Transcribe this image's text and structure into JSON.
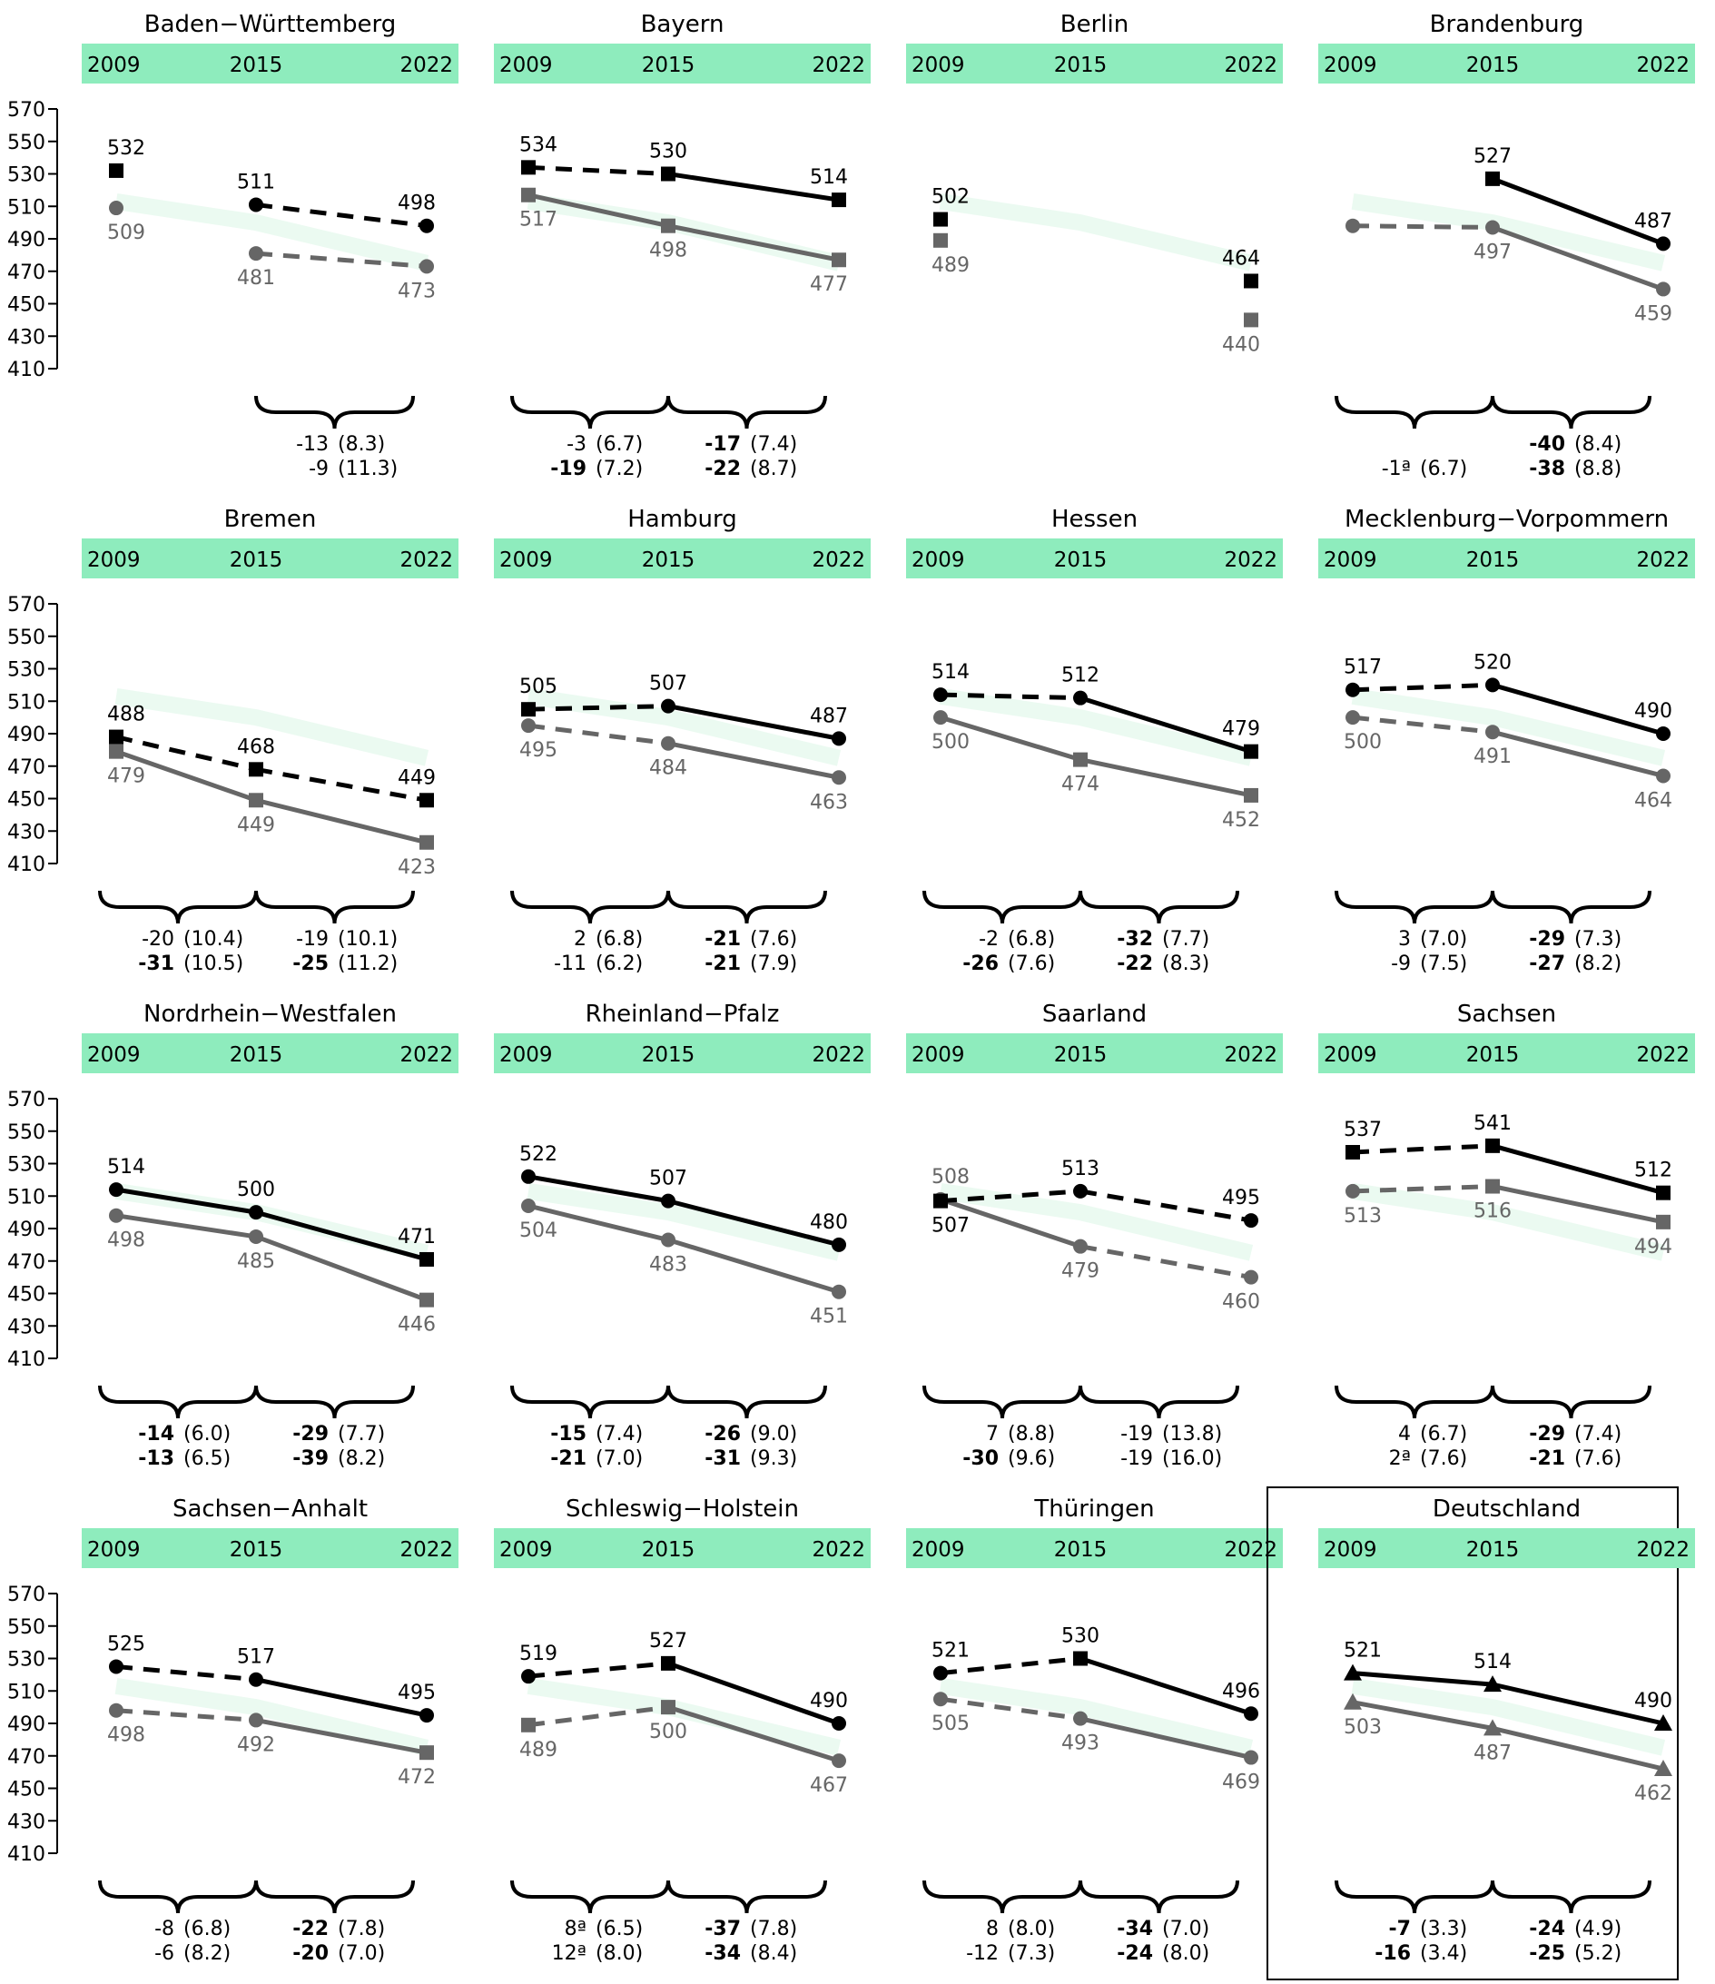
{
  "years": [
    "2009",
    "2015",
    "2022"
  ],
  "colors": {
    "header_band": "#8eecbd",
    "reference_band": "#ebfaf1",
    "series_dark": "#000000",
    "series_gray": "#666666",
    "text": "#000000",
    "gray_text": "#666666"
  },
  "chart_data": {
    "type": "line",
    "ylim": [
      410,
      570
    ],
    "y_ticks": [
      "570",
      "550",
      "530",
      "510",
      "490",
      "470",
      "450",
      "430",
      "410"
    ],
    "panels": [
      {
        "title": "Baden−Württemberg",
        "marker": "circle",
        "ref": true,
        "dark": {
          "values": [
            532,
            511,
            498
          ],
          "markers": [
            "square",
            "circle",
            "circle"
          ],
          "segments": [
            "none",
            "dashed"
          ]
        },
        "gray": {
          "values": [
            509,
            481,
            473
          ],
          "markers": [
            "circle",
            "circle",
            "circle"
          ],
          "segments": [
            "none",
            "dashed"
          ]
        },
        "diffs": [
          null,
          {
            "row1": {
              "v": "-13",
              "se": "(8.3)",
              "bold": false
            },
            "row2": {
              "v": "-9",
              "se": "(11.3)",
              "bold": false
            }
          }
        ]
      },
      {
        "title": "Bayern",
        "marker": "square",
        "ref": true,
        "dark": {
          "values": [
            534,
            530,
            514
          ],
          "markers": [
            "square",
            "square",
            "square"
          ],
          "segments": [
            "dashed",
            "solid"
          ]
        },
        "gray": {
          "values": [
            517,
            498,
            477
          ],
          "markers": [
            "square",
            "square",
            "square"
          ],
          "segments": [
            "solid",
            "solid"
          ]
        },
        "diffs": [
          {
            "row1": {
              "v": "-3",
              "se": "(6.7)",
              "bold": false
            },
            "row2": {
              "v": "-19",
              "se": "(7.2)",
              "bold": true
            }
          },
          {
            "row1": {
              "v": "-17",
              "se": "(7.4)",
              "bold": true
            },
            "row2": {
              "v": "-22",
              "se": "(8.7)",
              "bold": true
            }
          }
        ]
      },
      {
        "title": "Berlin",
        "marker": "square",
        "ref": true,
        "dark": {
          "values": [
            502,
            null,
            464
          ],
          "markers": [
            "square",
            null,
            "square"
          ],
          "segments": [
            "none",
            "none"
          ]
        },
        "gray": {
          "values": [
            489,
            null,
            440
          ],
          "markers": [
            "square",
            null,
            "square"
          ],
          "segments": [
            "none",
            "none"
          ]
        },
        "diffs": [
          null,
          null
        ]
      },
      {
        "title": "Brandenburg",
        "marker": "circle",
        "ref": true,
        "dark": {
          "values": [
            null,
            527,
            487
          ],
          "markers": [
            null,
            "square",
            "circle"
          ],
          "segments": [
            "none",
            "solid"
          ]
        },
        "gray": {
          "values": [
            498,
            497,
            459
          ],
          "markers": [
            "circle",
            "circle",
            "circle"
          ],
          "segments": [
            "dashed",
            "solid"
          ]
        },
        "gray_labels": [
          false,
          true,
          true
        ],
        "diffs": [
          {
            "row1": null,
            "row2": {
              "v": "-1ª",
              "se": "(6.7)",
              "bold": false
            }
          },
          {
            "row1": {
              "v": "-40",
              "se": "(8.4)",
              "bold": true
            },
            "row2": {
              "v": "-38",
              "se": "(8.8)",
              "bold": true
            }
          }
        ]
      },
      {
        "title": "Bremen",
        "marker": "square",
        "ref": true,
        "dark": {
          "values": [
            488,
            468,
            449
          ],
          "markers": [
            "square",
            "square",
            "square"
          ],
          "segments": [
            "dashed",
            "dashed"
          ]
        },
        "gray": {
          "values": [
            479,
            449,
            423
          ],
          "markers": [
            "square",
            "square",
            "square"
          ],
          "segments": [
            "solid",
            "solid"
          ]
        },
        "diffs": [
          {
            "row1": {
              "v": "-20",
              "se": "(10.4)",
              "bold": false
            },
            "row2": {
              "v": "-31",
              "se": "(10.5)",
              "bold": true
            }
          },
          {
            "row1": {
              "v": "-19",
              "se": "(10.1)",
              "bold": false
            },
            "row2": {
              "v": "-25",
              "se": "(11.2)",
              "bold": true
            }
          }
        ]
      },
      {
        "title": "Hamburg",
        "marker": "circle",
        "ref": true,
        "dark": {
          "values": [
            505,
            507,
            487
          ],
          "markers": [
            "square",
            "circle",
            "circle"
          ],
          "segments": [
            "dashed",
            "solid"
          ]
        },
        "gray": {
          "values": [
            495,
            484,
            463
          ],
          "markers": [
            "circle",
            "circle",
            "circle"
          ],
          "segments": [
            "dashed",
            "solid"
          ]
        },
        "diffs": [
          {
            "row1": {
              "v": "2",
              "se": "(6.8)",
              "bold": false
            },
            "row2": {
              "v": "-11",
              "se": "(6.2)",
              "bold": false
            }
          },
          {
            "row1": {
              "v": "-21",
              "se": "(7.6)",
              "bold": true
            },
            "row2": {
              "v": "-21",
              "se": "(7.9)",
              "bold": true
            }
          }
        ]
      },
      {
        "title": "Hessen",
        "marker": "circle",
        "ref": true,
        "dark": {
          "values": [
            514,
            512,
            479
          ],
          "markers": [
            "circle",
            "circle",
            "square"
          ],
          "segments": [
            "dashed",
            "solid"
          ]
        },
        "gray": {
          "values": [
            500,
            474,
            452
          ],
          "markers": [
            "circle",
            "square",
            "square"
          ],
          "segments": [
            "solid",
            "solid"
          ]
        },
        "diffs": [
          {
            "row1": {
              "v": "-2",
              "se": "(6.8)",
              "bold": false
            },
            "row2": {
              "v": "-26",
              "se": "(7.6)",
              "bold": true
            }
          },
          {
            "row1": {
              "v": "-32",
              "se": "(7.7)",
              "bold": true
            },
            "row2": {
              "v": "-22",
              "se": "(8.3)",
              "bold": true
            }
          }
        ]
      },
      {
        "title": "Mecklenburg−Vorpommern",
        "marker": "circle",
        "ref": true,
        "dark": {
          "values": [
            517,
            520,
            490
          ],
          "markers": [
            "circle",
            "circle",
            "circle"
          ],
          "segments": [
            "dashed",
            "solid"
          ]
        },
        "gray": {
          "values": [
            500,
            491,
            464
          ],
          "markers": [
            "circle",
            "circle",
            "circle"
          ],
          "segments": [
            "dashed",
            "solid"
          ]
        },
        "diffs": [
          {
            "row1": {
              "v": "3",
              "se": "(7.0)",
              "bold": false
            },
            "row2": {
              "v": "-9",
              "se": "(7.5)",
              "bold": false
            }
          },
          {
            "row1": {
              "v": "-29",
              "se": "(7.3)",
              "bold": true
            },
            "row2": {
              "v": "-27",
              "se": "(8.2)",
              "bold": true
            }
          }
        ]
      },
      {
        "title": "Nordrhein−Westfalen",
        "marker": "circle",
        "ref": true,
        "dark": {
          "values": [
            514,
            500,
            471
          ],
          "markers": [
            "circle",
            "circle",
            "square"
          ],
          "segments": [
            "solid",
            "solid"
          ]
        },
        "gray": {
          "values": [
            498,
            485,
            446
          ],
          "markers": [
            "circle",
            "circle",
            "square"
          ],
          "segments": [
            "solid",
            "solid"
          ]
        },
        "diffs": [
          {
            "row1": {
              "v": "-14",
              "se": "(6.0)",
              "bold": true
            },
            "row2": {
              "v": "-13",
              "se": "(6.5)",
              "bold": true
            }
          },
          {
            "row1": {
              "v": "-29",
              "se": "(7.7)",
              "bold": true
            },
            "row2": {
              "v": "-39",
              "se": "(8.2)",
              "bold": true
            }
          }
        ]
      },
      {
        "title": "Rheinland−Pfalz",
        "marker": "circle",
        "ref": true,
        "dark": {
          "values": [
            522,
            507,
            480
          ],
          "markers": [
            "circle",
            "circle",
            "circle"
          ],
          "segments": [
            "solid",
            "solid"
          ]
        },
        "gray": {
          "values": [
            504,
            483,
            451
          ],
          "markers": [
            "circle",
            "circle",
            "circle"
          ],
          "segments": [
            "solid",
            "solid"
          ]
        },
        "diffs": [
          {
            "row1": {
              "v": "-15",
              "se": "(7.4)",
              "bold": true
            },
            "row2": {
              "v": "-21",
              "se": "(7.0)",
              "bold": true
            }
          },
          {
            "row1": {
              "v": "-26",
              "se": "(9.0)",
              "bold": true
            },
            "row2": {
              "v": "-31",
              "se": "(9.3)",
              "bold": true
            }
          }
        ]
      },
      {
        "title": "Saarland",
        "marker": "circle",
        "ref": true,
        "dark": {
          "values": [
            507,
            513,
            495
          ],
          "markers": [
            "square",
            "circle",
            "circle"
          ],
          "segments": [
            "dashed",
            "dashed"
          ]
        },
        "gray": {
          "values": [
            508,
            479,
            460
          ],
          "markers": [
            "circle",
            "circle",
            "circle"
          ],
          "segments": [
            "solid",
            "dashed"
          ]
        },
        "label_swap": true,
        "diffs": [
          {
            "row1": {
              "v": "7",
              "se": "(8.8)",
              "bold": false
            },
            "row2": {
              "v": "-30",
              "se": "(9.6)",
              "bold": true
            }
          },
          {
            "row1": {
              "v": "-19",
              "se": "(13.8)",
              "bold": false
            },
            "row2": {
              "v": "-19",
              "se": "(16.0)",
              "bold": false
            }
          }
        ]
      },
      {
        "title": "Sachsen",
        "marker": "square",
        "ref": true,
        "dark": {
          "values": [
            537,
            541,
            512
          ],
          "markers": [
            "square",
            "square",
            "square"
          ],
          "segments": [
            "dashed",
            "solid"
          ]
        },
        "gray": {
          "values": [
            513,
            516,
            494
          ],
          "markers": [
            "circle",
            "square",
            "square"
          ],
          "segments": [
            "dashed",
            "solid"
          ]
        },
        "diffs": [
          {
            "row1": {
              "v": "4",
              "se": "(6.7)",
              "bold": false
            },
            "row2": {
              "v": "2ª",
              "se": "(7.6)",
              "bold": false
            }
          },
          {
            "row1": {
              "v": "-29",
              "se": "(7.4)",
              "bold": true
            },
            "row2": {
              "v": "-21",
              "se": "(7.6)",
              "bold": true
            }
          }
        ]
      },
      {
        "title": "Sachsen−Anhalt",
        "marker": "circle",
        "ref": true,
        "dark": {
          "values": [
            525,
            517,
            495
          ],
          "markers": [
            "circle",
            "circle",
            "circle"
          ],
          "segments": [
            "dashed",
            "solid"
          ]
        },
        "gray": {
          "values": [
            498,
            492,
            472
          ],
          "markers": [
            "circle",
            "circle",
            "square"
          ],
          "segments": [
            "dashed",
            "solid"
          ]
        },
        "diffs": [
          {
            "row1": {
              "v": "-8",
              "se": "(6.8)",
              "bold": false
            },
            "row2": {
              "v": "-6",
              "se": "(8.2)",
              "bold": false
            }
          },
          {
            "row1": {
              "v": "-22",
              "se": "(7.8)",
              "bold": true
            },
            "row2": {
              "v": "-20",
              "se": "(7.0)",
              "bold": true
            }
          }
        ]
      },
      {
        "title": "Schleswig−Holstein",
        "marker": "circle",
        "ref": true,
        "dark": {
          "values": [
            519,
            527,
            490
          ],
          "markers": [
            "circle",
            "square",
            "circle"
          ],
          "segments": [
            "dashed",
            "solid"
          ]
        },
        "gray": {
          "values": [
            489,
            500,
            467
          ],
          "markers": [
            "square",
            "square",
            "circle"
          ],
          "segments": [
            "dashed",
            "solid"
          ]
        },
        "diffs": [
          {
            "row1": {
              "v": "8ª",
              "se": "(6.5)",
              "bold": false
            },
            "row2": {
              "v": "12ª",
              "se": "(8.0)",
              "bold": false
            }
          },
          {
            "row1": {
              "v": "-37",
              "se": "(7.8)",
              "bold": true
            },
            "row2": {
              "v": "-34",
              "se": "(8.4)",
              "bold": true
            }
          }
        ]
      },
      {
        "title": "Thüringen",
        "marker": "circle",
        "ref": true,
        "dark": {
          "values": [
            521,
            530,
            496
          ],
          "markers": [
            "circle",
            "square",
            "circle"
          ],
          "segments": [
            "dashed",
            "solid"
          ]
        },
        "gray": {
          "values": [
            505,
            493,
            469
          ],
          "markers": [
            "circle",
            "circle",
            "circle"
          ],
          "segments": [
            "dashed",
            "solid"
          ]
        },
        "diffs": [
          {
            "row1": {
              "v": "8",
              "se": "(8.0)",
              "bold": false
            },
            "row2": {
              "v": "-12",
              "se": "(7.3)",
              "bold": false
            }
          },
          {
            "row1": {
              "v": "-34",
              "se": "(7.0)",
              "bold": true
            },
            "row2": {
              "v": "-24",
              "se": "(8.0)",
              "bold": true
            }
          }
        ]
      },
      {
        "title": "Deutschland",
        "marker": "triangle",
        "ref": true,
        "boxed": true,
        "dark": {
          "values": [
            521,
            514,
            490
          ],
          "markers": [
            "triangle",
            "triangle",
            "triangle"
          ],
          "segments": [
            "solid",
            "solid"
          ]
        },
        "gray": {
          "values": [
            503,
            487,
            462
          ],
          "markers": [
            "triangle",
            "triangle",
            "triangle"
          ],
          "segments": [
            "solid",
            "solid"
          ]
        },
        "diffs": [
          {
            "row1": {
              "v": "-7",
              "se": "(3.3)",
              "bold": true
            },
            "row2": {
              "v": "-16",
              "se": "(3.4)",
              "bold": true
            }
          },
          {
            "row1": {
              "v": "-24",
              "se": "(4.9)",
              "bold": true
            },
            "row2": {
              "v": "-25",
              "se": "(5.2)",
              "bold": true
            }
          }
        ]
      }
    ],
    "reference_band_values": [
      513,
      500,
      475
    ]
  }
}
